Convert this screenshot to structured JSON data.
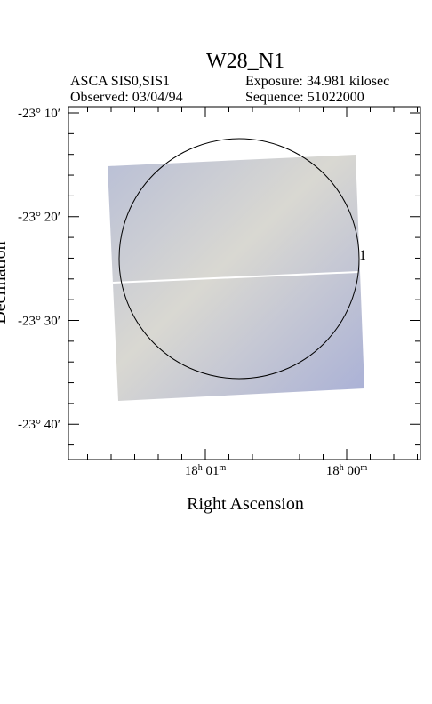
{
  "header": {
    "title": "W28_N1",
    "instrument": "ASCA SIS0,SIS1",
    "exposure": "Exposure: 34.981 kilosec",
    "observed": "Observed: 03/04/94",
    "sequence": "Sequence: 51022000"
  },
  "axes": {
    "x_label": "Right Ascension",
    "y_label": "Declination",
    "y_ticks": [
      "-23° 10′",
      "-23° 20′",
      "-23° 30′",
      "-23° 40′"
    ],
    "x_ticks": [
      {
        "h": "18",
        "hu": "h",
        "m": " 01",
        "mu": "m"
      },
      {
        "h": "18",
        "hu": "h",
        "m": " 00",
        "mu": "m"
      }
    ]
  },
  "region": {
    "label": "1"
  }
}
